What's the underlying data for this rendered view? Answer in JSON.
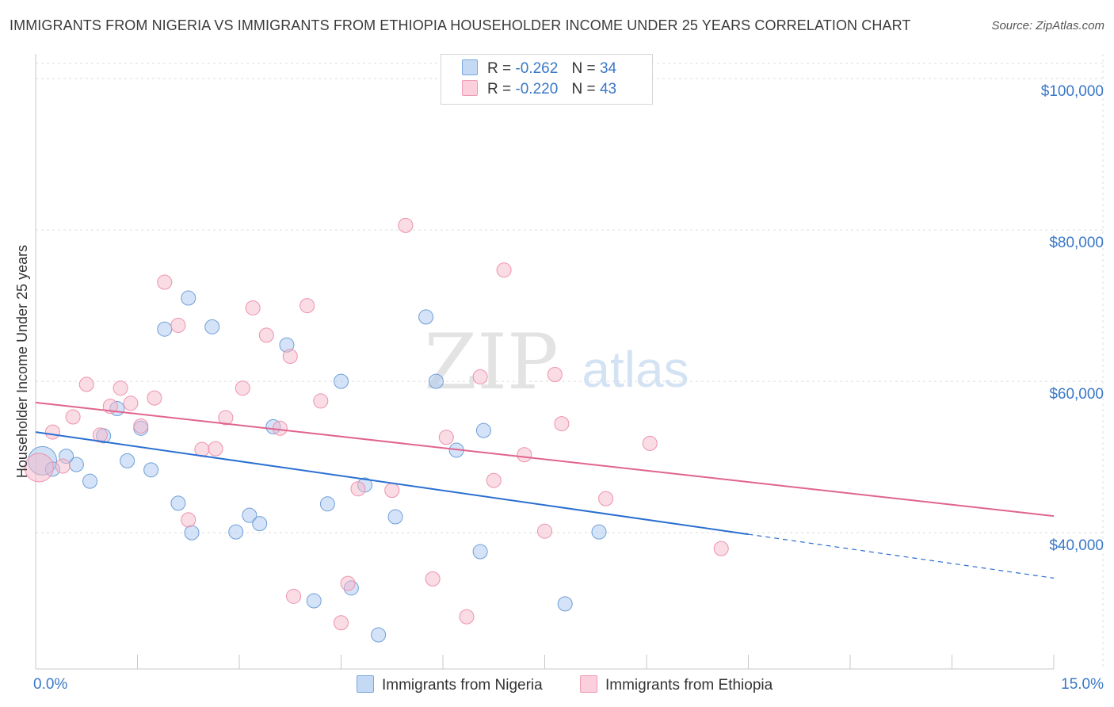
{
  "title": "IMMIGRANTS FROM NIGERIA VS IMMIGRANTS FROM ETHIOPIA HOUSEHOLDER INCOME UNDER 25 YEARS CORRELATION CHART",
  "source": "Source: ZipAtlas.com",
  "watermark": {
    "zip": "ZIP",
    "atlas": "atlas"
  },
  "legend": [
    {
      "r_label": "R =",
      "r_value": "-0.262",
      "n_label": "N =",
      "n_value": "34",
      "color": "#a9c8ef"
    },
    {
      "r_label": "R =",
      "r_value": "-0.220",
      "n_label": "N =",
      "n_value": "43",
      "color": "#f6b9cb"
    }
  ],
  "chart_data": {
    "type": "scatter",
    "xlabel": "",
    "ylabel": "Householder Income Under 25 years",
    "xlim": [
      0,
      15
    ],
    "ylim": [
      22000,
      102000
    ],
    "x_tick_labels": [
      "0.0%",
      "15.0%"
    ],
    "y_ticks": [
      40000,
      60000,
      80000,
      100000
    ],
    "y_tick_labels": [
      "$40,000",
      "$60,000",
      "$80,000",
      "$100,000"
    ],
    "series": [
      {
        "name": "Immigrants from Nigeria",
        "color": "#a9c8ef",
        "edge": "#6f9fd8",
        "line_color": "#2a6fd1",
        "trend": {
          "x0": 0.0,
          "y0": 53300,
          "x1": 15.0,
          "y1": 34000,
          "solid_until": 10.5
        },
        "points": [
          [
            0.1,
            49500
          ],
          [
            0.25,
            48400
          ],
          [
            0.45,
            50100
          ],
          [
            0.6,
            49000
          ],
          [
            0.8,
            46800
          ],
          [
            1.0,
            52800
          ],
          [
            1.2,
            56400
          ],
          [
            1.35,
            49500
          ],
          [
            1.55,
            53800
          ],
          [
            1.7,
            48300
          ],
          [
            1.9,
            66900
          ],
          [
            2.1,
            43900
          ],
          [
            2.3,
            40000
          ],
          [
            2.25,
            71000
          ],
          [
            2.6,
            67200
          ],
          [
            2.95,
            40100
          ],
          [
            3.15,
            42300
          ],
          [
            3.3,
            41200
          ],
          [
            3.5,
            54000
          ],
          [
            3.7,
            64800
          ],
          [
            4.1,
            31000
          ],
          [
            4.3,
            43800
          ],
          [
            4.5,
            60000
          ],
          [
            4.65,
            32700
          ],
          [
            4.85,
            46300
          ],
          [
            5.05,
            26500
          ],
          [
            5.3,
            42100
          ],
          [
            5.75,
            68500
          ],
          [
            5.9,
            60000
          ],
          [
            6.2,
            50900
          ],
          [
            6.55,
            37500
          ],
          [
            6.6,
            53500
          ],
          [
            7.8,
            30600
          ],
          [
            8.3,
            40100
          ]
        ]
      },
      {
        "name": "Immigrants from Ethiopia",
        "color": "#f6b9cb",
        "edge": "#ee91ad",
        "line_color": "#e0648c",
        "trend": {
          "x0": 0.0,
          "y0": 57200,
          "x1": 15.0,
          "y1": 42200,
          "solid_until": 15.0
        },
        "points": [
          [
            0.05,
            48600
          ],
          [
            0.4,
            48800
          ],
          [
            0.25,
            53300
          ],
          [
            0.55,
            55300
          ],
          [
            0.75,
            59600
          ],
          [
            0.95,
            52900
          ],
          [
            1.1,
            56700
          ],
          [
            1.25,
            59100
          ],
          [
            1.4,
            57100
          ],
          [
            1.55,
            54100
          ],
          [
            1.75,
            57800
          ],
          [
            1.9,
            73100
          ],
          [
            2.1,
            67400
          ],
          [
            2.25,
            41700
          ],
          [
            2.45,
            51000
          ],
          [
            2.65,
            51100
          ],
          [
            2.8,
            55200
          ],
          [
            3.05,
            59100
          ],
          [
            3.2,
            69700
          ],
          [
            3.4,
            66100
          ],
          [
            3.6,
            53800
          ],
          [
            3.75,
            63300
          ],
          [
            3.8,
            31600
          ],
          [
            4.0,
            70000
          ],
          [
            4.2,
            57400
          ],
          [
            4.5,
            28100
          ],
          [
            4.6,
            33300
          ],
          [
            4.75,
            45800
          ],
          [
            5.25,
            45600
          ],
          [
            5.45,
            80600
          ],
          [
            5.85,
            33900
          ],
          [
            6.05,
            52600
          ],
          [
            6.35,
            28900
          ],
          [
            6.55,
            60600
          ],
          [
            6.75,
            46900
          ],
          [
            6.9,
            74700
          ],
          [
            7.2,
            50300
          ],
          [
            7.5,
            40200
          ],
          [
            7.65,
            60900
          ],
          [
            7.75,
            54400
          ],
          [
            8.4,
            44500
          ],
          [
            9.05,
            51800
          ],
          [
            10.1,
            37900
          ]
        ]
      }
    ]
  }
}
